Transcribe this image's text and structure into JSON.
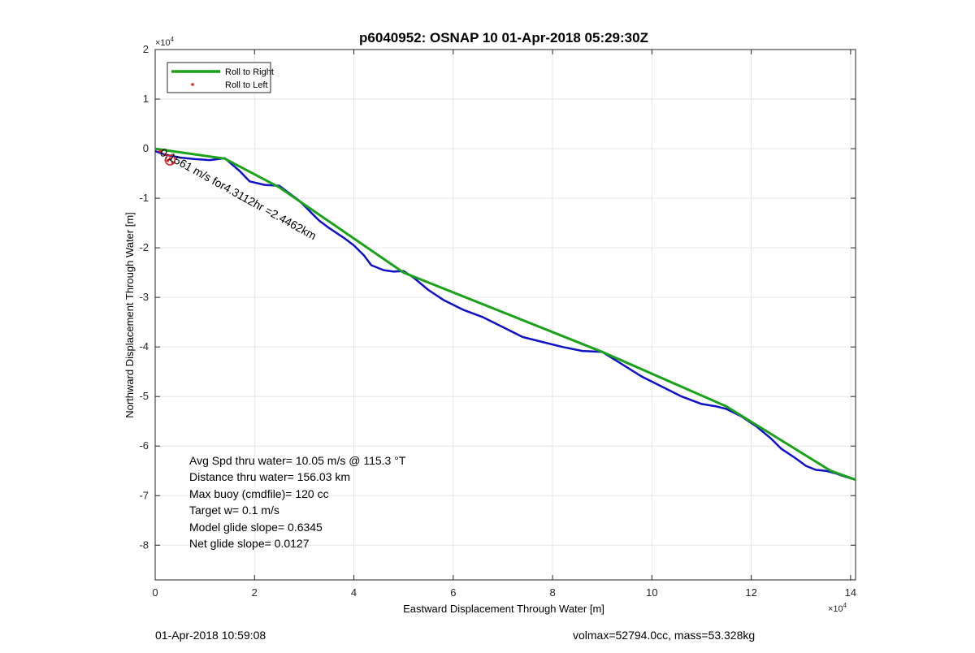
{
  "chart_data": {
    "type": "line",
    "title": "p6040952: OSNAP 10 01-Apr-2018 05:29:30Z",
    "xlabel": "Eastward Displacement Through Water [m]",
    "ylabel": "Northward Displacement Through Water [m]",
    "x_multiplier_label": "×10",
    "x_multiplier_exp": "4",
    "y_multiplier_label": "×10",
    "y_multiplier_exp": "4",
    "xlim": [
      0,
      141000
    ],
    "ylim": [
      -87000,
      20000
    ],
    "x_ticks": [
      {
        "value": 0,
        "label": "0"
      },
      {
        "value": 20000,
        "label": "2"
      },
      {
        "value": 40000,
        "label": "4"
      },
      {
        "value": 60000,
        "label": "6"
      },
      {
        "value": 80000,
        "label": "8"
      },
      {
        "value": 100000,
        "label": "10"
      },
      {
        "value": 120000,
        "label": "12"
      },
      {
        "value": 140000,
        "label": "14"
      }
    ],
    "y_ticks": [
      {
        "value": 20000,
        "label": "2"
      },
      {
        "value": 10000,
        "label": "1"
      },
      {
        "value": 0,
        "label": "0"
      },
      {
        "value": -10000,
        "label": "-1"
      },
      {
        "value": -20000,
        "label": "-2"
      },
      {
        "value": -30000,
        "label": "-3"
      },
      {
        "value": -40000,
        "label": "-4"
      },
      {
        "value": -50000,
        "label": "-5"
      },
      {
        "value": -60000,
        "label": "-6"
      },
      {
        "value": -70000,
        "label": "-7"
      },
      {
        "value": -80000,
        "label": "-8"
      }
    ],
    "grid": true,
    "legend_position": "top-left",
    "series": [
      {
        "name": "Roll to Right",
        "color": "#1aa31a",
        "style": "line",
        "x": [
          0,
          14000,
          25000,
          50000,
          90000,
          115000,
          136000,
          141000
        ],
        "y": [
          0,
          -2000,
          -7800,
          -25000,
          -41000,
          -52000,
          -65000,
          -66800
        ]
      },
      {
        "name": "Roll to Left",
        "color": "#e02020",
        "style": "dots",
        "x": [
          1000,
          2000,
          3000,
          3500,
          2500
        ],
        "y": [
          -500,
          -1200,
          -2000,
          -2800,
          -2400
        ]
      }
    ],
    "track": {
      "color": "#1010c8",
      "x": [
        0,
        2000,
        5000,
        8000,
        11000,
        14000,
        17000,
        19000,
        22000,
        25000,
        27000,
        29000,
        31000,
        33000,
        35000,
        38000,
        40000,
        42000,
        43500,
        46000,
        48000,
        50000,
        52000,
        55000,
        58000,
        62000,
        66000,
        70000,
        74000,
        78000,
        82000,
        86000,
        90000,
        94000,
        98000,
        102000,
        106000,
        110000,
        113000,
        115000,
        118000,
        121000,
        124000,
        126000,
        129000,
        131000,
        133000,
        135000,
        137000,
        139000,
        141000
      ],
      "y": [
        -500,
        -1200,
        -1800,
        -2100,
        -2300,
        -1900,
        -4500,
        -6600,
        -7300,
        -7500,
        -9000,
        -10500,
        -12500,
        -14500,
        -16000,
        -18000,
        -19500,
        -21500,
        -23500,
        -24500,
        -24800,
        -24700,
        -26000,
        -28500,
        -30500,
        -32500,
        -34000,
        -36000,
        -38000,
        -39000,
        -40000,
        -40800,
        -41000,
        -43500,
        -46000,
        -48000,
        -50000,
        -51500,
        -52000,
        -52500,
        -54000,
        -56000,
        -58500,
        -60500,
        -62500,
        -64000,
        -64800,
        -65000,
        -65500,
        -66200,
        -66800
      ]
    },
    "label_text": "0.1561 m/s for4.3112hr =2.4462km",
    "overlap_text": "",
    "circle": {
      "x": 3000,
      "y": -2300,
      "color": "#e02020"
    },
    "stats": [
      "Avg Spd thru water= 10.05 m/s @ 115.3 °T",
      "Distance thru water= 156.03 km",
      "Max buoy (cmdfile)= 120 cc",
      "Target w= 0.1 m/s",
      "Model glide slope= 0.6345",
      "Net glide slope= 0.0127"
    ]
  },
  "footer": {
    "left": "01-Apr-2018 10:59:08",
    "right": "volmax=52794.0cc, mass=53.328kg"
  }
}
